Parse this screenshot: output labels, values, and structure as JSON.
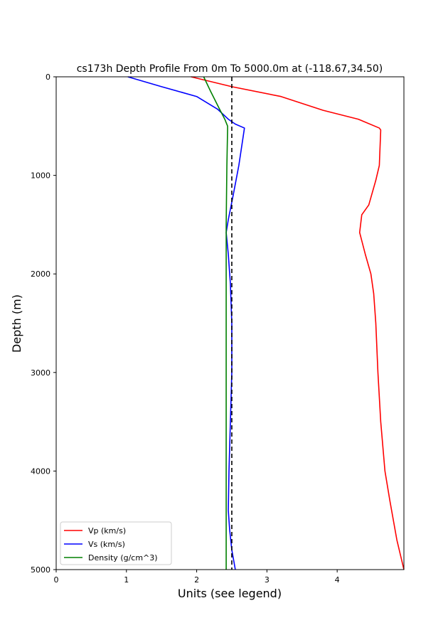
{
  "chart_data": {
    "type": "line",
    "title": "cs173h Depth Profile From 0m To 5000.0m at (-118.67,34.50)",
    "xlabel": "Units (see legend)",
    "ylabel": "Depth (m)",
    "xlim": [
      0,
      4.95
    ],
    "ylim": [
      0,
      5000
    ],
    "y_inverted": true,
    "x_ticks": [
      "0",
      "1",
      "2",
      "3",
      "4"
    ],
    "x_tick_values": [
      0,
      1,
      2,
      3,
      4
    ],
    "y_ticks": [
      "0",
      "1000",
      "2000",
      "3000",
      "4000",
      "5000"
    ],
    "y_tick_values": [
      0,
      1000,
      2000,
      3000,
      4000,
      5000
    ],
    "grid": false,
    "legend_position": "lower-left",
    "reference_line": {
      "x": 2.5,
      "style": "dashed",
      "color": "#000000"
    },
    "series": [
      {
        "name": "Vp (km/s)",
        "color": "#ff0000",
        "x": [
          1.92,
          2.5,
          3.2,
          3.8,
          4.3,
          4.6,
          4.62,
          4.6,
          4.55,
          4.45,
          4.35,
          4.32,
          4.4,
          4.48,
          4.52,
          4.55,
          4.58,
          4.62,
          4.68,
          4.75,
          4.85,
          4.95
        ],
        "y": [
          0,
          100,
          200,
          340,
          430,
          520,
          540,
          900,
          1050,
          1300,
          1400,
          1580,
          1800,
          2000,
          2200,
          2500,
          3000,
          3500,
          4000,
          4300,
          4700,
          5000
        ]
      },
      {
        "name": "Vs (km/s)",
        "color": "#0000ff",
        "x": [
          1.02,
          1.5,
          2.0,
          2.3,
          2.45,
          2.55,
          2.68,
          2.6,
          2.52,
          2.45,
          2.42,
          2.45,
          2.48,
          2.5,
          2.5,
          2.48,
          2.46,
          2.45,
          2.47,
          2.5,
          2.55
        ],
        "y": [
          0,
          100,
          200,
          330,
          430,
          480,
          520,
          900,
          1200,
          1450,
          1580,
          1800,
          2100,
          2500,
          3000,
          3500,
          4000,
          4400,
          4600,
          4800,
          5000
        ]
      },
      {
        "name": "Density (g/cm^3)",
        "color": "#008000",
        "x": [
          2.1,
          2.2,
          2.32,
          2.4,
          2.44,
          2.44,
          2.43,
          2.42,
          2.42,
          2.42,
          2.42,
          2.42,
          2.42,
          2.42
        ],
        "y": [
          0,
          150,
          320,
          430,
          500,
          530,
          900,
          1500,
          2000,
          2500,
          3000,
          3500,
          4000,
          5000
        ]
      }
    ]
  }
}
